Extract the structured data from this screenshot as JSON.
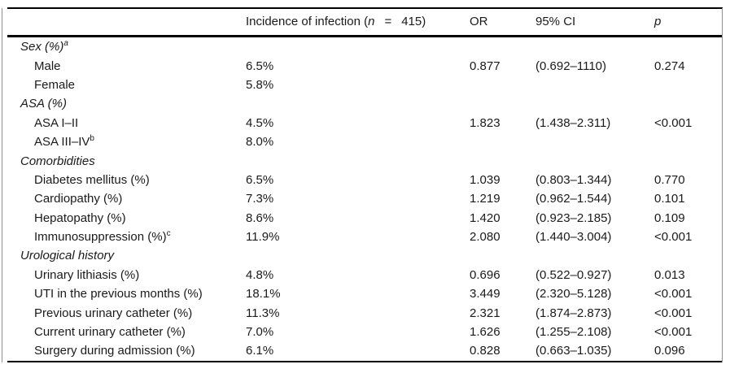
{
  "table": {
    "header": {
      "incidence_prefix": "Incidence of infection (",
      "incidence_n": "n",
      "incidence_eq": "=",
      "incidence_value": "415)",
      "or_label": "OR",
      "ci_label": "95% CI",
      "p_label": "p"
    },
    "rows": [
      {
        "type": "section",
        "label": "Sex (%)",
        "sup": "a"
      },
      {
        "type": "item",
        "label": "Male",
        "incidence": "6.5%",
        "or": "0.877",
        "ci": "(0.692–1110)",
        "p": "0.274"
      },
      {
        "type": "item",
        "label": "Female",
        "incidence": "5.8%"
      },
      {
        "type": "section",
        "label": "ASA (%)"
      },
      {
        "type": "item",
        "label": "ASA I–II",
        "incidence": "4.5%",
        "or": "1.823",
        "ci": "(1.438–2.311)",
        "p": "<0.001"
      },
      {
        "type": "item",
        "label": "ASA III–IV",
        "sup": "b",
        "incidence": "8.0%"
      },
      {
        "type": "section",
        "label": "Comorbidities"
      },
      {
        "type": "item",
        "label": "Diabetes mellitus (%)",
        "incidence": "6.5%",
        "or": "1.039",
        "ci": "(0.803–1.344)",
        "p": "0.770"
      },
      {
        "type": "item",
        "label": "Cardiopathy (%)",
        "incidence": "7.3%",
        "or": "1.219",
        "ci": "(0.962–1.544)",
        "p": "0.101"
      },
      {
        "type": "item",
        "label": "Hepatopathy (%)",
        "incidence": "8.6%",
        "or": "1.420",
        "ci": "(0.923–2.185)",
        "p": "0.109"
      },
      {
        "type": "item",
        "label": "Immunosuppression (%)",
        "sup": "c",
        "incidence": "11.9%",
        "or": "2.080",
        "ci": "(1.440–3.004)",
        "p": "<0.001"
      },
      {
        "type": "section",
        "label": "Urological history"
      },
      {
        "type": "item",
        "label": "Urinary lithiasis (%)",
        "incidence": "4.8%",
        "or": "0.696",
        "ci": "(0.522–0.927)",
        "p": "0.013"
      },
      {
        "type": "item",
        "label": "UTI in the previous months (%)",
        "incidence": "18.1%",
        "or": "3.449",
        "ci": "(2.320–5.128)",
        "p": "<0.001"
      },
      {
        "type": "item",
        "label": "Previous urinary catheter (%)",
        "incidence": "11.3%",
        "or": "2.321",
        "ci": "(1.874–2.873)",
        "p": "<0.001"
      },
      {
        "type": "item",
        "label": "Current urinary catheter (%)",
        "incidence": "7.0%",
        "or": "1.626",
        "ci": "(1.255–2.108)",
        "p": "<0.001"
      },
      {
        "type": "item",
        "label": "Surgery during admission (%)",
        "incidence": "6.1%",
        "or": "0.828",
        "ci": "(0.663–1.035)",
        "p": "0.096"
      }
    ]
  }
}
